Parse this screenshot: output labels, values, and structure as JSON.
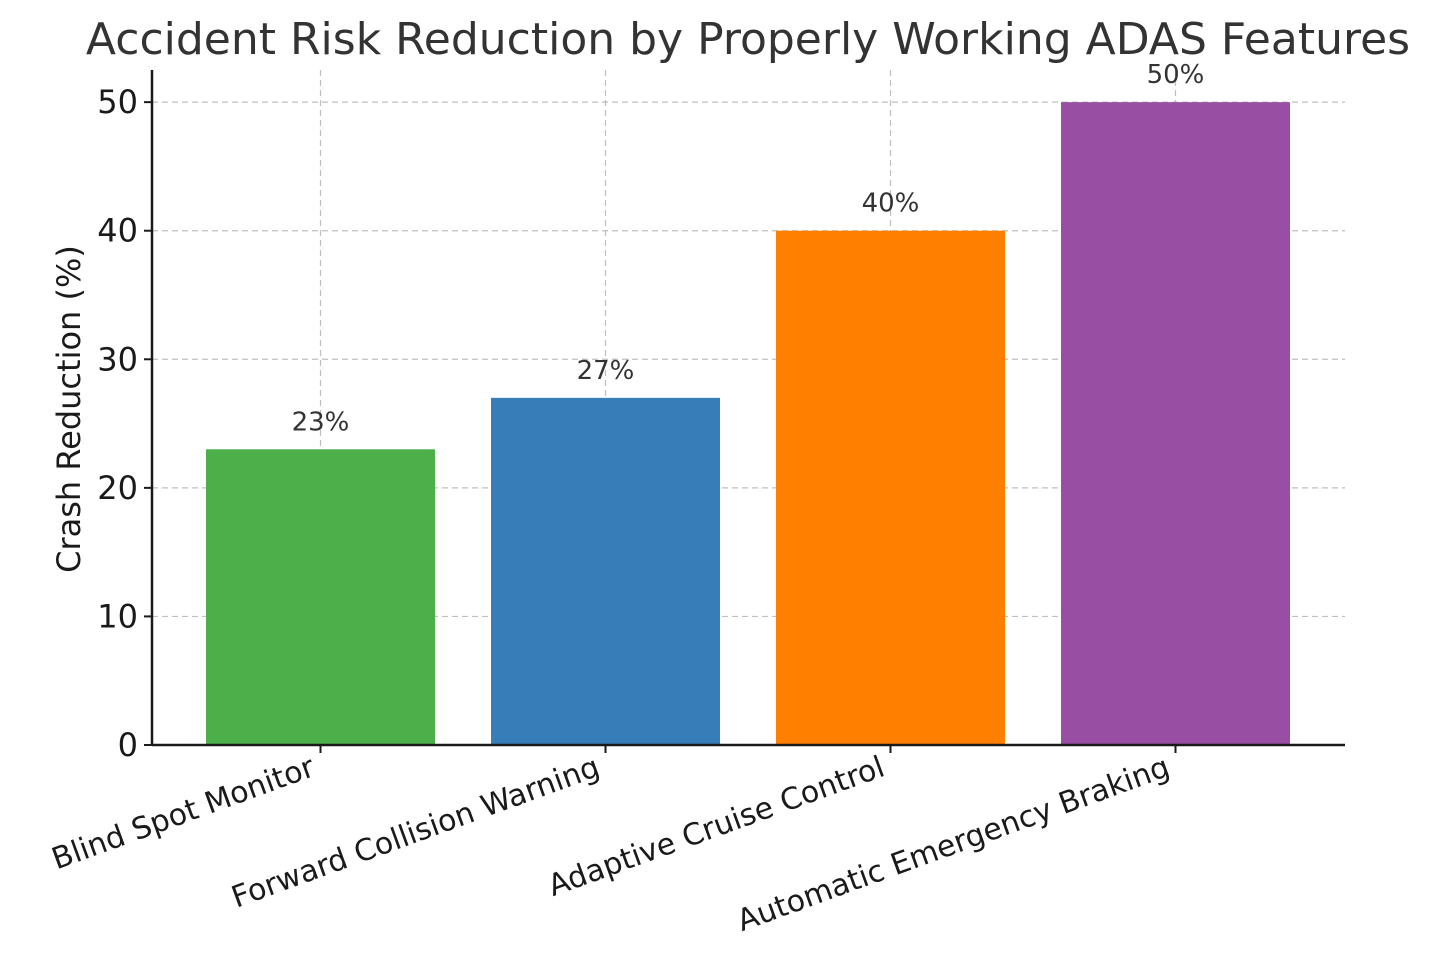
{
  "chart_data": {
    "type": "bar",
    "title": "Accident Risk Reduction by Properly Working ADAS Features",
    "xlabel": "",
    "ylabel": "Crash Reduction (%)",
    "ylim": [
      0,
      52.5
    ],
    "yticks": [
      0,
      10,
      20,
      30,
      40,
      50
    ],
    "grid": true,
    "categories": [
      "Blind Spot Monitor",
      "Forward Collision Warning",
      "Adaptive Cruise Control",
      "Automatic Emergency Braking"
    ],
    "values": [
      23,
      27,
      40,
      50
    ],
    "data_labels": [
      "23%",
      "27%",
      "40%",
      "50%"
    ],
    "colors": [
      "#4daf4a",
      "#377eb8",
      "#ff7f00",
      "#984ea3"
    ]
  }
}
